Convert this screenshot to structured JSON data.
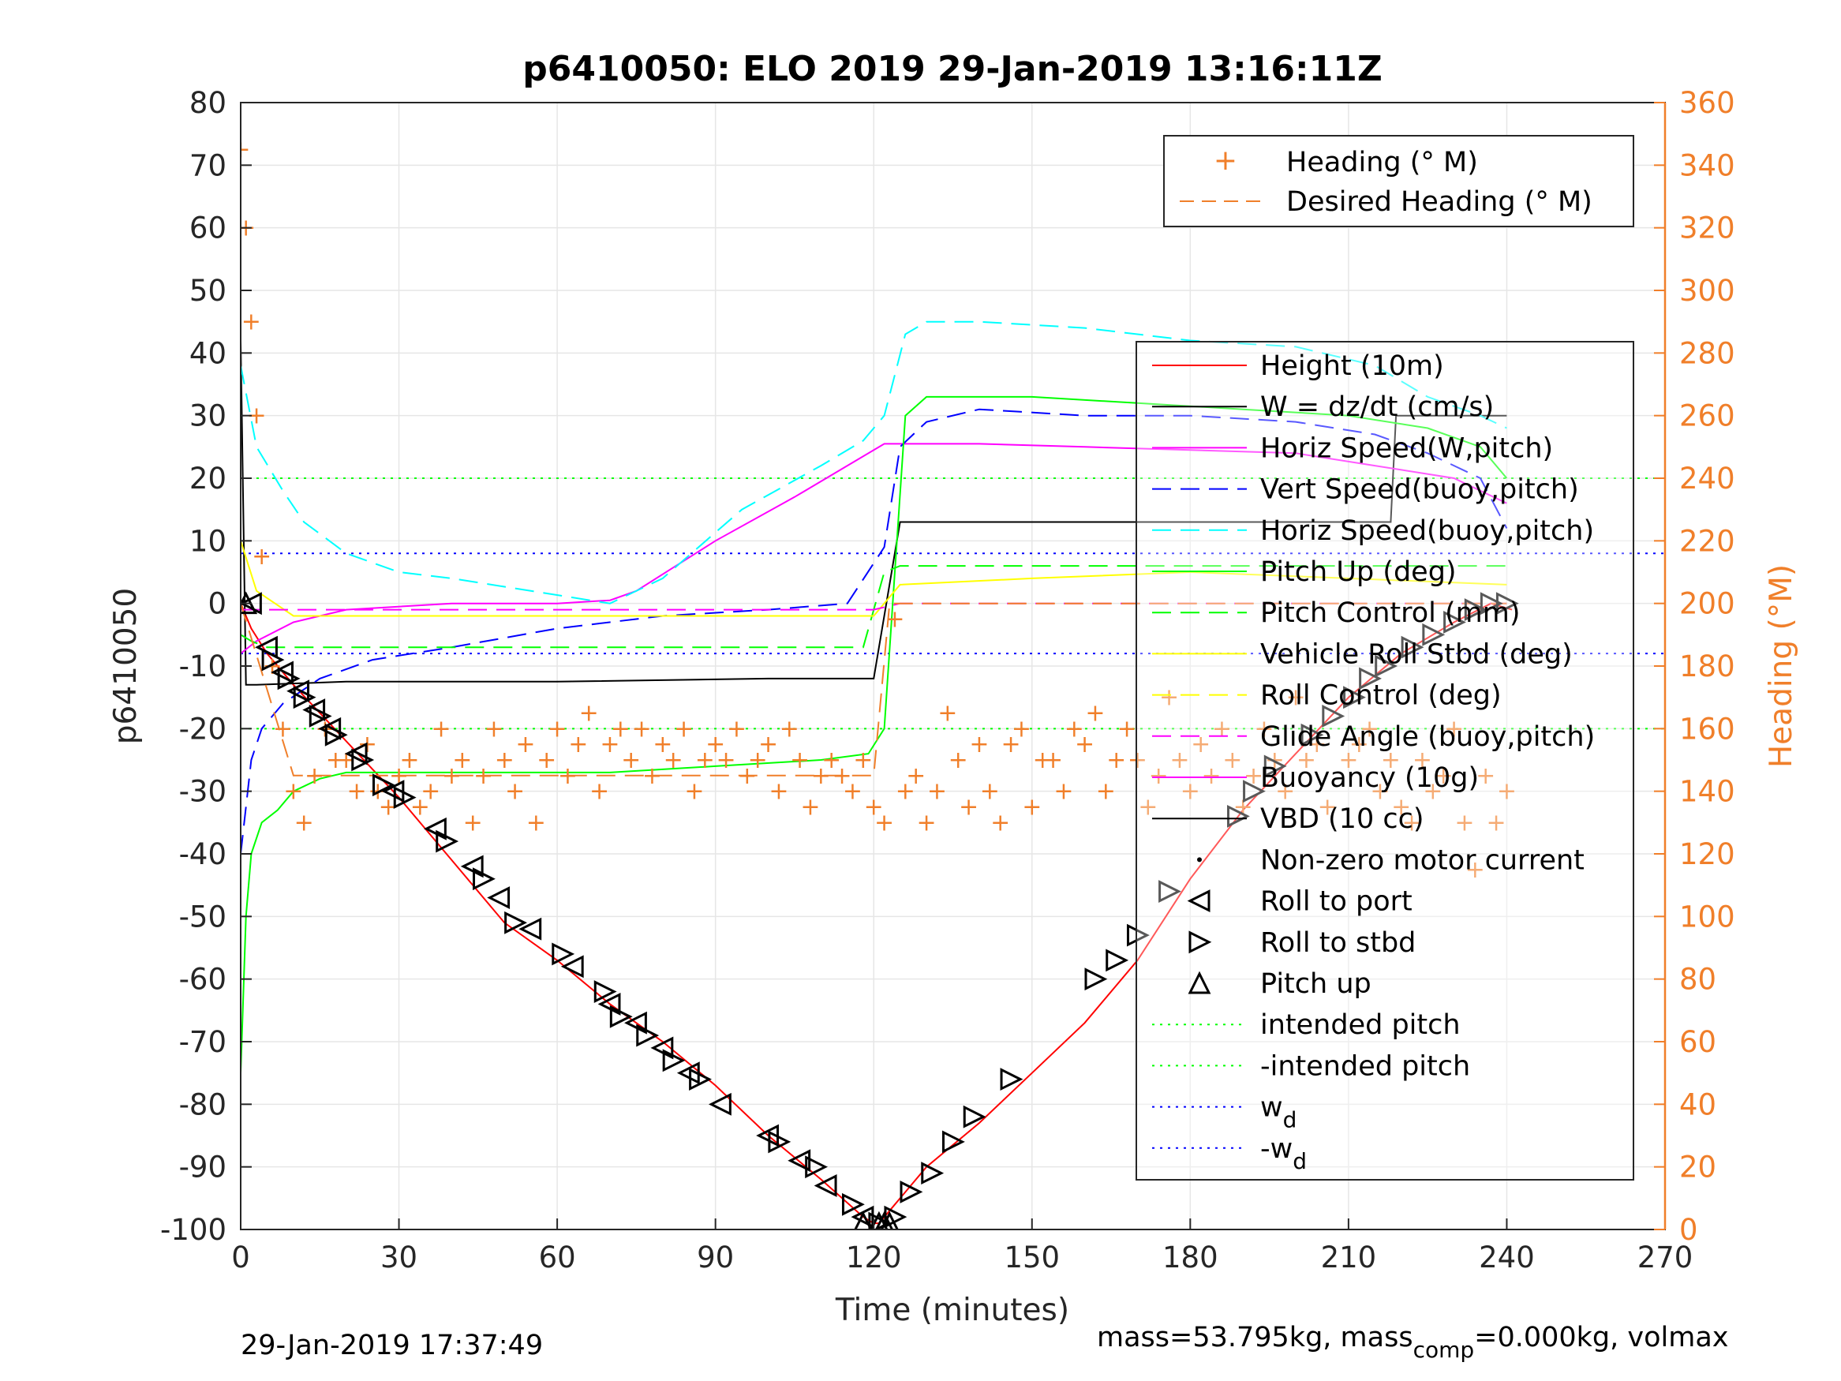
{
  "chart_data": {
    "type": "line",
    "title": "p6410050: ELO 2019 29-Jan-2019 13:16:11Z",
    "xlabel": "Time (minutes)",
    "ylabel": "p6410050",
    "y2label": "Heading (°M)",
    "xlim": [
      0,
      270
    ],
    "ylim": [
      -100,
      80
    ],
    "y2lim": [
      0,
      360
    ],
    "xticks": [
      "0",
      "30",
      "60",
      "90",
      "120",
      "150",
      "180",
      "210",
      "240",
      "270"
    ],
    "yticks": [
      "-100",
      "-90",
      "-80",
      "-70",
      "-60",
      "-50",
      "-40",
      "-30",
      "-20",
      "-10",
      "0",
      "10",
      "20",
      "30",
      "40",
      "50",
      "60",
      "70",
      "80"
    ],
    "y2ticks": [
      "0",
      "20",
      "40",
      "60",
      "80",
      "100",
      "120",
      "140",
      "160",
      "180",
      "200",
      "220",
      "240",
      "260",
      "280",
      "300",
      "320",
      "340",
      "360"
    ],
    "grid": true,
    "footer_left": "29-Jan-2019 17:37:49",
    "footer_right_parts": [
      "mass=53.795kg, mass",
      "comp",
      "=0.000kg, volmax"
    ],
    "legend_heading": {
      "placement": "top-right",
      "entries": [
        "Heading (° M)",
        "Desired Heading (° M)"
      ]
    },
    "legend_main": {
      "placement": "right",
      "entries": [
        {
          "label": "Height (10m)",
          "color": "#ff0000",
          "style": "solid"
        },
        {
          "label": "W = dz/dt (cm/s)",
          "color": "#000000",
          "style": "solid"
        },
        {
          "label": "Horiz Speed(W,pitch)",
          "color": "#ff00ff",
          "style": "solid"
        },
        {
          "label": "Vert Speed(buoy,pitch)",
          "color": "#0000ff",
          "style": "dashed"
        },
        {
          "label": "Horiz Speed(buoy,pitch)",
          "color": "#00ffff",
          "style": "dashed"
        },
        {
          "label": "Pitch Up (deg)",
          "color": "#00ff00",
          "style": "solid"
        },
        {
          "label": "Pitch Control (mm)",
          "color": "#00ff00",
          "style": "dashed"
        },
        {
          "label": "Vehicle Roll Stbd (deg)",
          "color": "#ffff00",
          "style": "solid"
        },
        {
          "label": "Roll Control (deg)",
          "color": "#ffff00",
          "style": "dashed"
        },
        {
          "label": "Glide Angle (buoy,pitch)",
          "color": "#ff00ff",
          "style": "dashed"
        },
        {
          "label": "Buoyancy (10g)",
          "color": "#ff00ff",
          "style": "solid"
        },
        {
          "label": "VBD (10 cc)",
          "color": "#000000",
          "style": "solid"
        },
        {
          "label": "Non-zero motor current",
          "color": "#000000",
          "style": "dot"
        },
        {
          "label": "Roll to port",
          "color": "#000000",
          "style": "marker-left"
        },
        {
          "label": "Roll to stbd",
          "color": "#000000",
          "style": "marker-right"
        },
        {
          "label": "Pitch up",
          "color": "#000000",
          "style": "marker-up"
        },
        {
          "label": "intended pitch",
          "color": "#00ff00",
          "style": "dotted"
        },
        {
          "label": "-intended pitch",
          "color": "#00ff00",
          "style": "dotted"
        },
        {
          "label": "w",
          "sub": "d",
          "color": "#0000ff",
          "style": "dotted"
        },
        {
          "label": "-w",
          "sub": "d",
          "color": "#0000ff",
          "style": "dotted"
        }
      ]
    },
    "reference_lines": {
      "intended_pitch": [
        20,
        -20
      ],
      "w_d": [
        8,
        -8
      ],
      "desired_heading_deg": [
        200,
        145
      ]
    },
    "series": [
      {
        "name": "Height (10m)",
        "color": "#ff0000",
        "x": [
          0,
          2,
          5,
          10,
          20,
          30,
          40,
          50,
          60,
          70,
          80,
          90,
          100,
          110,
          118,
          120,
          121,
          124,
          130,
          140,
          150,
          160,
          170,
          180,
          190,
          200,
          210,
          220,
          230,
          237,
          241
        ],
        "y": [
          0,
          -4,
          -8,
          -13,
          -22,
          -31,
          -41,
          -51,
          -57,
          -64,
          -70,
          -77,
          -85,
          -92,
          -98,
          -99,
          -99,
          -96,
          -90,
          -83,
          -75,
          -67,
          -57,
          -44,
          -33,
          -24,
          -15,
          -8,
          -3,
          0,
          -1
        ]
      },
      {
        "name": "W = dz/dt (cm/s)",
        "color": "#000000",
        "x": [
          0,
          1,
          2,
          3,
          20,
          60,
          100,
          120,
          125,
          150,
          210,
          218,
          219,
          240
        ],
        "y": [
          42,
          -13,
          -13,
          -13,
          -12.5,
          -12.5,
          -12,
          -12,
          13,
          13,
          13,
          13,
          30,
          30
        ]
      },
      {
        "name": "Horiz Speed(W,pitch)",
        "color": "#ff00ff",
        "x": [
          0,
          3,
          10,
          20,
          40,
          60,
          70,
          75,
          90,
          105,
          115,
          122,
          125,
          140,
          160,
          180,
          200,
          215,
          230,
          240
        ],
        "y": [
          -8,
          -6,
          -3,
          -1,
          0,
          0,
          0.5,
          2,
          10,
          17,
          22,
          25.5,
          25.5,
          25.5,
          25,
          24.5,
          24,
          22,
          20,
          16
        ]
      },
      {
        "name": "Vert Speed(buoy,pitch)",
        "color": "#0000ff",
        "x": [
          0,
          2,
          4,
          8,
          15,
          25,
          40,
          60,
          80,
          100,
          115,
          122,
          125,
          130,
          140,
          160,
          180,
          200,
          215,
          225,
          235,
          240
        ],
        "y": [
          -40,
          -25,
          -20,
          -16,
          -12,
          -9,
          -7,
          -4,
          -2,
          -1,
          0,
          9,
          25,
          29,
          31,
          30,
          30,
          29,
          27,
          24,
          20,
          12
        ]
      },
      {
        "name": "Horiz Speed(buoy,pitch)",
        "color": "#00ffff",
        "x": [
          0,
          3,
          8,
          12,
          20,
          30,
          40,
          55,
          70,
          80,
          95,
          110,
          118,
          122,
          126,
          130,
          140,
          160,
          180,
          200,
          215,
          225,
          235,
          240
        ],
        "y": [
          38,
          25,
          18,
          13,
          8,
          5,
          4,
          2,
          0,
          4,
          15,
          22,
          26,
          30,
          43,
          45,
          45,
          44,
          42,
          41,
          38,
          33,
          30,
          28
        ]
      },
      {
        "name": "Pitch Up (deg)",
        "color": "#00ff00",
        "x": [
          0,
          1,
          2,
          4,
          7,
          10,
          15,
          20,
          30,
          50,
          70,
          90,
          110,
          119,
          122,
          126,
          130,
          150,
          170,
          190,
          210,
          225,
          235,
          240
        ],
        "y": [
          -75,
          -50,
          -40,
          -35,
          -33,
          -30,
          -28,
          -27,
          -27,
          -27,
          -27,
          -26,
          -25,
          -24,
          -20,
          30,
          33,
          33,
          32,
          31,
          30,
          28,
          25,
          20
        ]
      },
      {
        "name": "Pitch Control (mm)",
        "color": "#00ff00",
        "x": [
          0,
          2,
          5,
          10,
          30,
          60,
          90,
          118,
          122,
          125,
          160,
          200,
          240
        ],
        "y": [
          -5,
          -6,
          -7,
          -7,
          -7,
          -7,
          -7,
          -7,
          5,
          6,
          6,
          6,
          6
        ]
      },
      {
        "name": "Vehicle Roll Stbd (deg)",
        "color": "#ffff00",
        "x": [
          0,
          3,
          10,
          40,
          80,
          100,
          120,
          125,
          150,
          180,
          210,
          240
        ],
        "y": [
          10,
          2,
          -2,
          -2,
          -2,
          -2,
          -2,
          3,
          4,
          5,
          4,
          3
        ]
      },
      {
        "name": "Glide Angle (buoy,pitch)",
        "color": "#ff00ff",
        "x": [
          0,
          3,
          10,
          60,
          120,
          125,
          240
        ],
        "y": [
          -1,
          -1,
          -1,
          -1,
          -1,
          0,
          0
        ]
      },
      {
        "name": "Heading (° M)",
        "axis": "right",
        "color": "#f07f2a",
        "x": [
          0,
          1,
          2,
          3,
          4,
          6,
          8,
          10,
          12,
          14,
          16,
          18,
          20,
          22,
          24,
          26,
          28,
          30,
          32,
          34,
          36,
          38,
          40,
          42,
          44,
          46,
          48,
          50,
          52,
          54,
          56,
          58,
          60,
          62,
          64,
          66,
          68,
          70,
          72,
          74,
          76,
          78,
          80,
          82,
          84,
          86,
          88,
          90,
          92,
          94,
          96,
          98,
          100,
          102,
          104,
          106,
          108,
          110,
          112,
          114,
          116,
          118,
          120,
          122,
          124,
          126,
          128,
          130,
          132,
          134,
          136,
          138,
          140,
          142,
          144,
          146,
          148,
          150,
          152,
          154,
          156,
          158,
          160,
          162,
          164,
          166,
          168,
          170,
          172,
          174,
          176,
          178,
          180,
          182,
          184,
          186,
          188,
          190,
          192,
          194,
          196,
          198,
          200,
          202,
          204,
          206,
          210,
          212,
          214,
          216,
          218,
          220,
          222,
          224,
          226,
          228,
          230,
          232,
          234,
          236,
          238,
          240
        ],
        "y": [
          345,
          320,
          290,
          260,
          215,
          180,
          160,
          140,
          130,
          145,
          160,
          150,
          150,
          140,
          155,
          140,
          135,
          145,
          150,
          135,
          140,
          160,
          145,
          150,
          130,
          145,
          160,
          150,
          140,
          155,
          130,
          150,
          160,
          145,
          155,
          165,
          140,
          155,
          160,
          150,
          160,
          145,
          155,
          150,
          160,
          140,
          150,
          155,
          150,
          160,
          145,
          150,
          155,
          140,
          160,
          150,
          135,
          145,
          150,
          145,
          140,
          150,
          135,
          130,
          195,
          140,
          145,
          130,
          140,
          165,
          150,
          135,
          155,
          140,
          130,
          155,
          160,
          135,
          150,
          150,
          140,
          160,
          155,
          165,
          140,
          150,
          160,
          150,
          135,
          145,
          170,
          150,
          140,
          155,
          145,
          160,
          150,
          135,
          145,
          160,
          150,
          140,
          170,
          150,
          155,
          135,
          150,
          155,
          160,
          140,
          150,
          135,
          130,
          150,
          140,
          145,
          160,
          130,
          115,
          145,
          130,
          140
        ]
      },
      {
        "name": "Desired Heading (° M)",
        "axis": "right",
        "color": "#f07f2a",
        "x": [
          0,
          10,
          60,
          120,
          123,
          240
        ],
        "y": [
          200,
          145,
          145,
          145,
          200,
          200
        ]
      }
    ],
    "markers": {
      "roll_to_port": {
        "x": [
          2,
          5,
          8,
          11,
          14,
          17,
          22,
          29,
          37,
          44,
          49,
          55,
          63,
          70,
          75,
          80,
          85,
          91,
          100,
          106,
          111,
          118
        ],
        "y": [
          0,
          -7,
          -11,
          -14,
          -17,
          -20,
          -24,
          -30,
          -36,
          -42,
          -47,
          -52,
          -58,
          -64,
          -67,
          -71,
          -75,
          -80,
          -85,
          -89,
          -93,
          -98
        ]
      },
      "roll_to_stbd": {
        "x": [
          6,
          9,
          12,
          15,
          18,
          23,
          27,
          31,
          39,
          46,
          52,
          61,
          69,
          72,
          77,
          82,
          87,
          102,
          109,
          116,
          121,
          124,
          127,
          131,
          135,
          139,
          146,
          162,
          166,
          170,
          176,
          189,
          192,
          196,
          203,
          207,
          211,
          214,
          217,
          222,
          226,
          230,
          234,
          237,
          240
        ],
        "y": [
          -9,
          -12,
          -15,
          -18,
          -21,
          -25,
          -29,
          -31,
          -38,
          -44,
          -51,
          -56,
          -62,
          -66,
          -69,
          -73,
          -76,
          -86,
          -90,
          -96,
          -99,
          -98,
          -94,
          -91,
          -86,
          -82,
          -76,
          -60,
          -57,
          -53,
          -46,
          -34,
          -30,
          -26,
          -21,
          -18,
          -15,
          -12,
          -10,
          -7,
          -5,
          -3,
          -1,
          0,
          0
        ]
      },
      "pitch_up": {
        "x": [
          1,
          118,
          121,
          122,
          123
        ],
        "y": [
          0,
          -99,
          -99,
          -99,
          -99
        ]
      }
    }
  }
}
